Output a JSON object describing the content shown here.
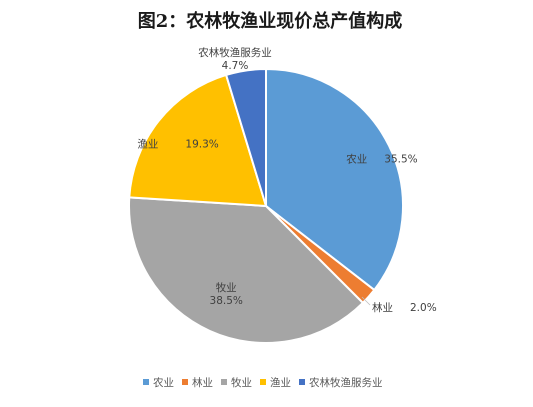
{
  "chart_data": {
    "type": "pie",
    "title": "图2：农林牧渔业现价总产值构成",
    "slices": [
      {
        "name": "农业",
        "value": 35.5,
        "label": "35.5%",
        "color": "#5B9BD5"
      },
      {
        "name": "林业",
        "value": 2.0,
        "label": "2.0%",
        "color": "#ED7D31"
      },
      {
        "name": "牧业",
        "value": 38.5,
        "label": "38.5%",
        "color": "#A5A5A5"
      },
      {
        "name": "渔业",
        "value": 19.3,
        "label": "19.3%",
        "color": "#FFC000"
      },
      {
        "name": "农林牧渔服务业",
        "value": 4.7,
        "label": "4.7%",
        "color": "#4472C4"
      }
    ],
    "legend_position": "bottom"
  }
}
